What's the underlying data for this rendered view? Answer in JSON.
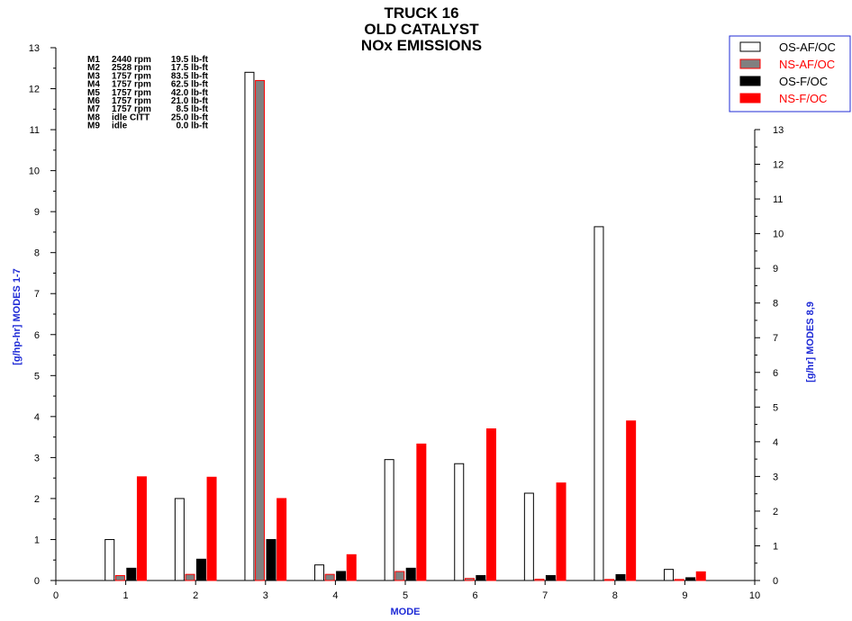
{
  "chart_data": {
    "type": "bar",
    "title_lines": [
      "TRUCK 16",
      "OLD CATALYST",
      "NOx EMISSIONS"
    ],
    "xlabel": "MODE",
    "ylabel_left": "[g/hp-hr] MODES 1-7",
    "ylabel_right": "[g/hr] MODES 8,9",
    "xlim": [
      0,
      10
    ],
    "ylim_left": [
      0,
      13
    ],
    "ylim_right": [
      0,
      13
    ],
    "categories": [
      1,
      2,
      3,
      4,
      5,
      6,
      7,
      8,
      9
    ],
    "series": [
      {
        "name": "OS-AF/OC",
        "color": "#ffffff",
        "edge": "#000000",
        "values": [
          1.0,
          2.0,
          12.4,
          0.38,
          2.95,
          2.85,
          2.13,
          10.2,
          0.32
        ]
      },
      {
        "name": "NS-AF/OC",
        "color": "#808080",
        "edge": "#ff0000",
        "values": [
          0.12,
          0.15,
          12.2,
          0.15,
          0.22,
          0.05,
          0.03,
          0.03,
          0.03
        ]
      },
      {
        "name": "OS-F/OC",
        "color": "#000000",
        "edge": "#000000",
        "values": [
          0.3,
          0.52,
          1.0,
          0.22,
          0.3,
          0.12,
          0.12,
          0.17,
          0.08
        ]
      },
      {
        "name": "NS-F/OC",
        "color": "#ff0000",
        "edge": "#ff0000",
        "values": [
          2.53,
          2.52,
          2.0,
          0.63,
          3.33,
          3.7,
          2.38,
          4.6,
          0.25
        ]
      }
    ],
    "axis_for_category": {
      "left": [
        1,
        2,
        3,
        4,
        5,
        6,
        7
      ],
      "right": [
        8,
        9
      ]
    },
    "legend_position": "top-right",
    "grid": false,
    "mode_notes": [
      [
        "M1",
        "2440 rpm",
        "19.5 lb-ft"
      ],
      [
        "M2",
        "2528 rpm",
        "17.5 lb-ft"
      ],
      [
        "M3",
        "1757 rpm",
        "83.5 lb-ft"
      ],
      [
        "M4",
        "1757 rpm",
        "62.5 lb-ft"
      ],
      [
        "M5",
        "1757 rpm",
        "42.0 lb-ft"
      ],
      [
        "M6",
        "1757 rpm",
        "21.0 lb-ft"
      ],
      [
        "M7",
        "1757 rpm",
        "8.5 lb-ft"
      ],
      [
        "M8",
        "idle CITT",
        "25.0 lb-ft"
      ],
      [
        "M9",
        "idle",
        "0.0 lb-ft"
      ]
    ]
  }
}
